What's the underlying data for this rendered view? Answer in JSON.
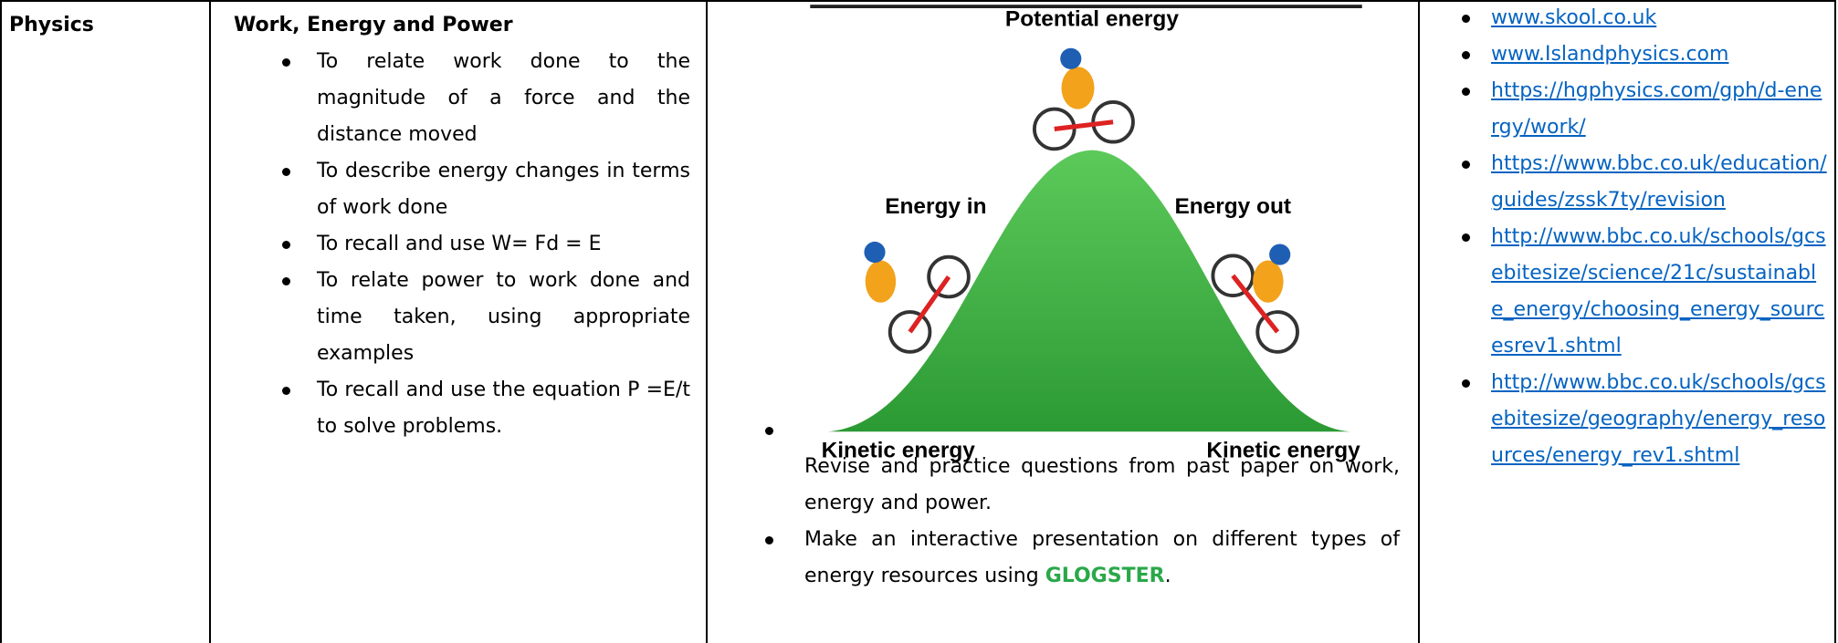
{
  "table": {
    "rows": [
      {
        "subject": "Physics",
        "topic": {
          "title": "Work, Energy  and Power",
          "objectives": [
            "To relate work done to the magnitude of a force and the distance moved",
            "To describe energy changes in terms of work done",
            "To recall and use W= Fd = E",
            "To relate power to work done and time taken, using appropriate examples",
            "To recall and use the equation P =E/t to solve problems."
          ]
        },
        "activities": {
          "diagram": {
            "top": "Potential energy",
            "left": "Energy in",
            "right": "Energy out",
            "bottom_left": "Kinetic energy",
            "bottom_right": "Kinetic energy"
          },
          "items": [
            {
              "parts": [
                "Revise and practice questions from past paper on work, energy and power."
              ]
            },
            {
              "parts": [
                "Make an interactive presentation on different types of energy resources using ",
                "GLOGSTER",
                "."
              ]
            }
          ]
        },
        "resources": [
          "www.skool.co.uk",
          "www.Islandphysics.com",
          "https://hgphysics.com/gph/d-energy/work/",
          "https://www.bbc.co.uk/education/guides/zssk7ty/revision",
          "http://www.bbc.co.uk/schools/gcsebitesize/science/21c/sustainable_energy/choosing_energy_sourcesrev1.shtml",
          "http://www.bbc.co.uk/schools/gcsebitesize/geography/energy_resources/energy_rev1.shtml"
        ]
      }
    ]
  }
}
